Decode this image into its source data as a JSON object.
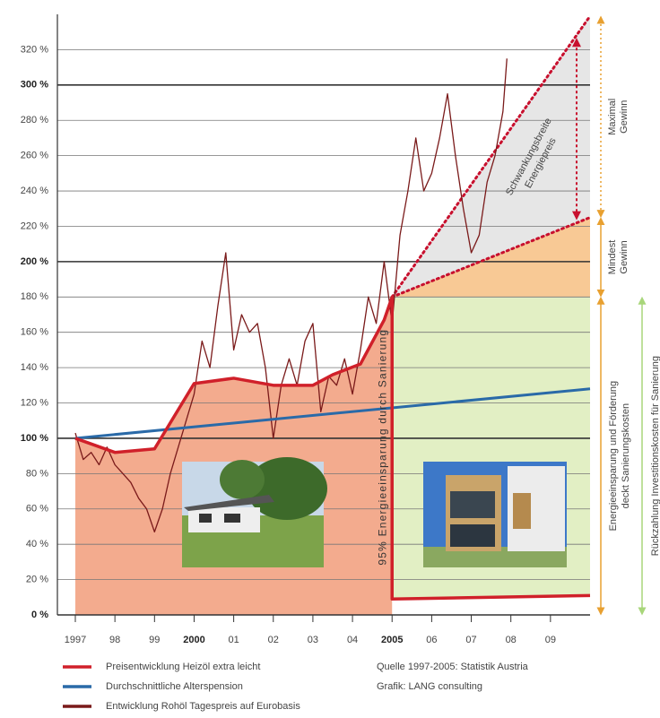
{
  "chart_data": {
    "type": "line",
    "xlim": [
      1997,
      2010
    ],
    "ylim": [
      0,
      340
    ],
    "xticks": [
      1997,
      {
        "value": 1998,
        "label": "98"
      },
      {
        "value": 1999,
        "label": "99"
      },
      2000,
      {
        "value": 2001,
        "label": "01"
      },
      {
        "value": 2002,
        "label": "02"
      },
      {
        "value": 2003,
        "label": "03"
      },
      {
        "value": 2004,
        "label": "04"
      },
      2005,
      {
        "value": 2006,
        "label": "06"
      },
      {
        "value": 2007,
        "label": "07"
      },
      {
        "value": 2008,
        "label": "08"
      },
      {
        "value": 2009,
        "label": "09"
      }
    ],
    "yticks": [
      {
        "value": 0,
        "label": "0 %"
      },
      {
        "value": 20,
        "label": "20 %"
      },
      {
        "value": 40,
        "label": "40 %"
      },
      {
        "value": 60,
        "label": "60 %"
      },
      {
        "value": 80,
        "label": "80 %"
      },
      {
        "value": 100,
        "label": "100 %"
      },
      {
        "value": 120,
        "label": "120 %"
      },
      {
        "value": 140,
        "label": "140 %"
      },
      {
        "value": 160,
        "label": "160 %"
      },
      {
        "value": 180,
        "label": "180 %"
      },
      {
        "value": 200,
        "label": "200 %"
      },
      {
        "value": 220,
        "label": "220 %"
      },
      {
        "value": 240,
        "label": "240 %"
      },
      {
        "value": 260,
        "label": "260 %"
      },
      {
        "value": 280,
        "label": "280 %"
      },
      {
        "value": 300,
        "label": "300 %"
      },
      {
        "value": 320,
        "label": "320 %"
      }
    ],
    "major_every": 100,
    "grid": true,
    "series": [
      {
        "name": "Preisentwicklung Heizöl extra leicht",
        "color": "#d0202a",
        "width": 3.5,
        "x": [
          1997,
          1998,
          1999,
          2000,
          2001,
          2002,
          2003,
          2003.5,
          2004.2,
          2004.8,
          2005,
          2005,
          2010
        ],
        "values": [
          100,
          92,
          94,
          131,
          134,
          130,
          130,
          136,
          142,
          167,
          180,
          9,
          11
        ]
      },
      {
        "name": "Durchschnittliche Alterspension",
        "color": "#2a6aa8",
        "width": 3,
        "x": [
          1997,
          2010
        ],
        "values": [
          100,
          128
        ]
      },
      {
        "name": "Entwicklung Rohöl Tagespreis auf Eurobasis",
        "color": "#7a1a1a",
        "width": 1.3,
        "x": [
          1997,
          1997.2,
          1997.4,
          1997.6,
          1997.8,
          1998,
          1998.2,
          1998.4,
          1998.6,
          1998.8,
          1999,
          1999.2,
          1999.4,
          1999.6,
          1999.8,
          2000,
          2000.2,
          2000.4,
          2000.6,
          2000.8,
          2001,
          2001.2,
          2001.4,
          2001.6,
          2001.8,
          2002,
          2002.2,
          2002.4,
          2002.6,
          2002.8,
          2003,
          2003.2,
          2003.4,
          2003.6,
          2003.8,
          2004,
          2004.2,
          2004.4,
          2004.6,
          2004.8,
          2005,
          2005.2,
          2005.4,
          2005.6,
          2005.8,
          2006,
          2006.2,
          2006.4,
          2006.6,
          2006.8,
          2007,
          2007.2,
          2007.4,
          2007.6,
          2007.8,
          2007.9
        ],
        "values": [
          103,
          88,
          92,
          85,
          95,
          85,
          80,
          75,
          66,
          60,
          47,
          60,
          80,
          95,
          110,
          125,
          155,
          140,
          175,
          205,
          150,
          170,
          160,
          165,
          140,
          100,
          130,
          145,
          130,
          155,
          165,
          115,
          135,
          130,
          145,
          125,
          150,
          180,
          165,
          200,
          165,
          215,
          240,
          270,
          240,
          250,
          270,
          295,
          260,
          230,
          205,
          215,
          245,
          260,
          285,
          315
        ]
      }
    ],
    "envelope": {
      "x": [
        2005,
        2010
      ],
      "min": [
        180,
        225
      ],
      "max": [
        180,
        339
      ]
    },
    "area_colors": {
      "past": "#f3ab8e",
      "savings": "#e2efc4",
      "min_gain": "#f8c995",
      "range": "#e6e6e6"
    },
    "annotations": {
      "savings_95": "95% Energieeinsparung durch Sanierung",
      "range": [
        "Schwankungsbreite",
        "Energiepreis"
      ],
      "max_gain": [
        "Maximal",
        "Gewinn"
      ],
      "min_gain": [
        "Mindest",
        "Gewinn"
      ],
      "covers": [
        "Energieeinsparung und Förderung",
        "deckt Sanierungskosten"
      ],
      "payback": "Rückzahlung Investitionskosten für Sanierung"
    },
    "source": "Quelle 1997-2005: Statistik Austria",
    "credit": "Grafik: LANG consulting"
  }
}
